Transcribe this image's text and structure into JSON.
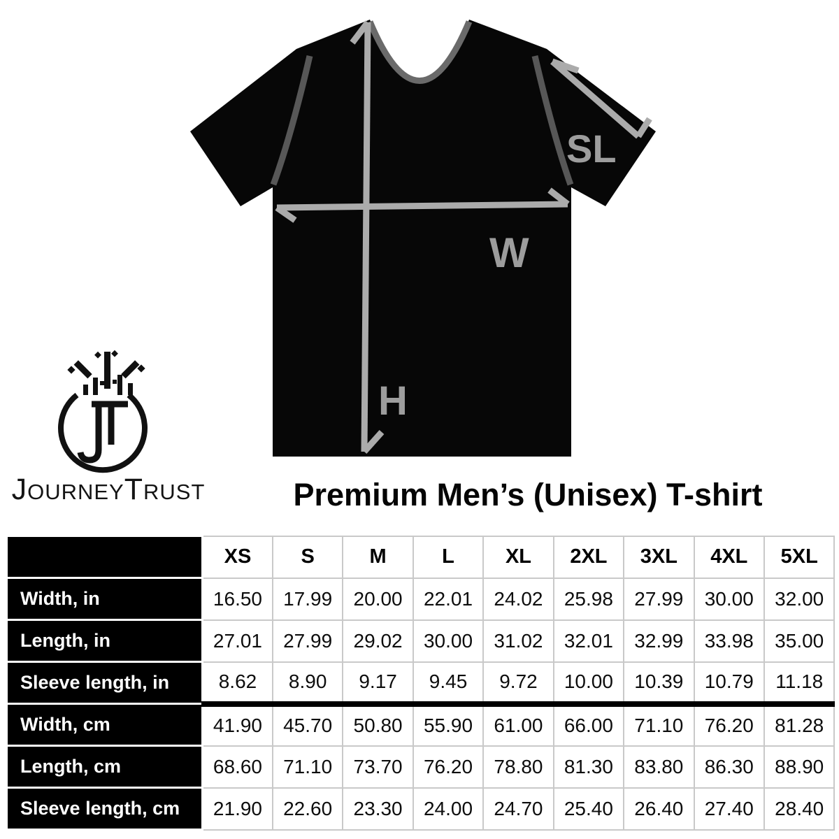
{
  "logo": {
    "monogram": "JT",
    "brand_words": [
      {
        "initial": "J",
        "rest": "OURNEY"
      },
      {
        "initial": "T",
        "rest": "RUST"
      }
    ]
  },
  "title": "Premium Men’s (Unisex) T-shirt",
  "diagram": {
    "height_label": "H",
    "width_label": "W",
    "sleeve_label": "SL",
    "colors": {
      "shirt": "#070707",
      "collar": "#6a6a6a",
      "seam": "#575757",
      "arrow": "#ababab",
      "label_gray": "#9d9d9d"
    }
  },
  "chart_data": {
    "type": "table",
    "title": "Premium Men’s (Unisex) T-shirt",
    "columns": [
      "XS",
      "S",
      "M",
      "L",
      "XL",
      "2XL",
      "3XL",
      "4XL",
      "5XL"
    ],
    "rows": [
      {
        "label": "Width, in",
        "values": [
          "16.50",
          "17.99",
          "20.00",
          "22.01",
          "24.02",
          "25.98",
          "27.99",
          "30.00",
          "32.00"
        ]
      },
      {
        "label": "Length, in",
        "values": [
          "27.01",
          "27.99",
          "29.02",
          "30.00",
          "31.02",
          "32.01",
          "32.99",
          "33.98",
          "35.00"
        ]
      },
      {
        "label": "Sleeve length, in",
        "values": [
          "8.62",
          "8.90",
          "9.17",
          "9.45",
          "9.72",
          "10.00",
          "10.39",
          "10.79",
          "11.18"
        ]
      },
      {
        "label": "Width, cm",
        "values": [
          "41.90",
          "45.70",
          "50.80",
          "55.90",
          "61.00",
          "66.00",
          "71.10",
          "76.20",
          "81.28"
        ],
        "section_break_above": true
      },
      {
        "label": "Length, cm",
        "values": [
          "68.60",
          "71.10",
          "73.70",
          "76.20",
          "78.80",
          "81.30",
          "83.80",
          "86.30",
          "88.90"
        ]
      },
      {
        "label": "Sleeve length, cm",
        "values": [
          "21.90",
          "22.60",
          "23.30",
          "24.00",
          "24.70",
          "25.40",
          "26.40",
          "27.40",
          "28.40"
        ]
      }
    ]
  }
}
